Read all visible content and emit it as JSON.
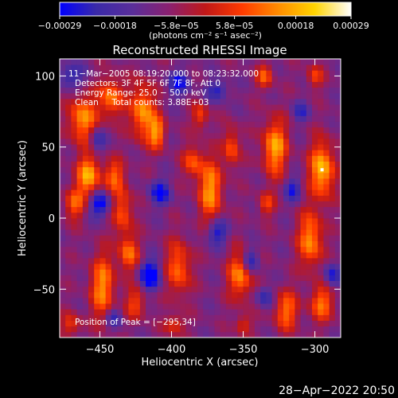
{
  "chart_data": {
    "type": "heatmap",
    "title": "Reconstructed RHESSI Image",
    "xlabel": "Heliocentric X (arcsec)",
    "ylabel": "Heliocentric Y (arcsec)",
    "xlim": [
      -478,
      -282
    ],
    "ylim": [
      -84,
      112
    ],
    "xticks": [
      {
        "value": -450,
        "label": "−450"
      },
      {
        "value": -400,
        "label": "−400"
      },
      {
        "value": -350,
        "label": "−350"
      },
      {
        "value": -300,
        "label": "−300"
      }
    ],
    "yticks": [
      {
        "value": -50,
        "label": "−50"
      },
      {
        "value": 0,
        "label": "0"
      },
      {
        "value": 50,
        "label": "50"
      },
      {
        "value": 100,
        "label": "100"
      }
    ],
    "colorbar": {
      "range": [
        -0.00029,
        0.00029
      ],
      "ticks": [
        {
          "value": -0.00029,
          "label": "−0.00029"
        },
        {
          "value": -0.00018,
          "label": "−0.00018"
        },
        {
          "value": -5.8e-05,
          "label": "−5.8e−05"
        },
        {
          "value": 5.8e-05,
          "label": "5.8e−05"
        },
        {
          "value": 0.00018,
          "label": "0.00018"
        },
        {
          "value": 0.00029,
          "label": "0.00029"
        }
      ],
      "unit_label": "(photons cm⁻² s⁻¹ asec⁻²)",
      "colormap": [
        "#0000ff",
        "#3a2aa8",
        "#5a2e9a",
        "#8a2070",
        "#c01818",
        "#ff3a00",
        "#ff8c00",
        "#ffd400",
        "#ffffff"
      ]
    },
    "annotations": [
      "11−Mar−2005 08:19:20.000 to 08:23:32.000",
      "Detectors: 3F 4F 5F 6F 7F 8F, Att 0",
      "Energy Range: 25.0 − 50.0 keV",
      "Clean     Total counts: 3.88E+03"
    ],
    "peak": {
      "label": "Position of Peak = [−295,34]",
      "x": -295,
      "y": 34
    },
    "grid_step_arcsec": 4,
    "blobs": [
      {
        "x": -462,
        "y": 70,
        "sx": 7,
        "sy": 12,
        "v": 0.00024
      },
      {
        "x": -458,
        "y": 30,
        "sx": 6,
        "sy": 10,
        "v": 0.00026
      },
      {
        "x": -468,
        "y": 10,
        "sx": 5,
        "sy": 8,
        "v": 0.00018
      },
      {
        "x": -442,
        "y": 85,
        "sx": 6,
        "sy": 10,
        "v": 0.00022
      },
      {
        "x": -440,
        "y": 30,
        "sx": 5,
        "sy": 8,
        "v": 0.00018
      },
      {
        "x": -434,
        "y": 5,
        "sx": 5,
        "sy": 12,
        "v": 0.00018
      },
      {
        "x": -430,
        "y": -25,
        "sx": 5,
        "sy": 9,
        "v": 0.0002
      },
      {
        "x": -420,
        "y": 75,
        "sx": 6,
        "sy": 14,
        "v": 0.00025
      },
      {
        "x": -410,
        "y": 60,
        "sx": 4,
        "sy": 8,
        "v": 0.00022
      },
      {
        "x": -448,
        "y": -48,
        "sx": 6,
        "sy": 16,
        "v": 0.00023
      },
      {
        "x": -425,
        "y": -60,
        "sx": 5,
        "sy": 8,
        "v": 0.00016
      },
      {
        "x": -385,
        "y": 40,
        "sx": 5,
        "sy": 8,
        "v": 0.00017
      },
      {
        "x": -373,
        "y": 20,
        "sx": 6,
        "sy": 15,
        "v": 0.00024
      },
      {
        "x": -380,
        "y": 72,
        "sx": 4,
        "sy": 7,
        "v": 0.00016
      },
      {
        "x": -395,
        "y": -35,
        "sx": 6,
        "sy": 14,
        "v": 0.0002
      },
      {
        "x": -358,
        "y": 50,
        "sx": 4,
        "sy": 10,
        "v": 0.00018
      },
      {
        "x": -352,
        "y": -40,
        "sx": 6,
        "sy": 12,
        "v": 0.00023
      },
      {
        "x": -335,
        "y": 100,
        "sx": 4,
        "sy": 6,
        "v": 0.00018
      },
      {
        "x": -328,
        "y": 50,
        "sx": 6,
        "sy": 14,
        "v": 0.00026
      },
      {
        "x": -334,
        "y": 10,
        "sx": 4,
        "sy": 6,
        "v": 0.00015
      },
      {
        "x": -320,
        "y": -65,
        "sx": 6,
        "sy": 10,
        "v": 0.0002
      },
      {
        "x": -295,
        "y": 34,
        "sx": 6,
        "sy": 14,
        "v": 0.00029
      },
      {
        "x": -303,
        "y": -15,
        "sx": 6,
        "sy": 14,
        "v": 0.00024
      },
      {
        "x": -295,
        "y": -60,
        "sx": 6,
        "sy": 9,
        "v": 0.0002
      },
      {
        "x": -300,
        "y": 100,
        "sx": 4,
        "sy": 6,
        "v": 0.00015
      },
      {
        "x": -470,
        "y": -75,
        "sx": 5,
        "sy": 6,
        "v": 0.00014
      },
      {
        "x": -398,
        "y": -75,
        "sx": 5,
        "sy": 5,
        "v": 0.00015
      },
      {
        "x": -350,
        "y": -75,
        "sx": 4,
        "sy": 5,
        "v": 0.00014
      },
      {
        "x": -450,
        "y": 10,
        "sx": 5,
        "sy": 6,
        "v": -0.00022
      },
      {
        "x": -470,
        "y": 100,
        "sx": 6,
        "sy": 6,
        "v": -0.00016
      },
      {
        "x": -452,
        "y": 55,
        "sx": 4,
        "sy": 6,
        "v": -0.00015
      },
      {
        "x": -415,
        "y": -40,
        "sx": 5,
        "sy": 7,
        "v": -0.00026
      },
      {
        "x": -408,
        "y": 18,
        "sx": 5,
        "sy": 6,
        "v": -0.0002
      },
      {
        "x": -395,
        "y": 95,
        "sx": 5,
        "sy": 6,
        "v": -0.00018
      },
      {
        "x": -368,
        "y": -10,
        "sx": 5,
        "sy": 6,
        "v": -0.00018
      },
      {
        "x": -368,
        "y": 90,
        "sx": 5,
        "sy": 5,
        "v": -0.00016
      },
      {
        "x": -345,
        "y": -30,
        "sx": 4,
        "sy": 6,
        "v": -0.00018
      },
      {
        "x": -335,
        "y": -55,
        "sx": 4,
        "sy": 5,
        "v": -0.00015
      },
      {
        "x": -315,
        "y": 20,
        "sx": 4,
        "sy": 6,
        "v": -0.00016
      },
      {
        "x": -288,
        "y": -40,
        "sx": 4,
        "sy": 6,
        "v": -0.00017
      },
      {
        "x": -310,
        "y": 75,
        "sx": 4,
        "sy": 5,
        "v": -0.00013
      },
      {
        "x": -440,
        "y": -70,
        "sx": 4,
        "sy": 5,
        "v": -0.00014
      }
    ]
  },
  "footer_date": "28−Apr−2022 20:50"
}
